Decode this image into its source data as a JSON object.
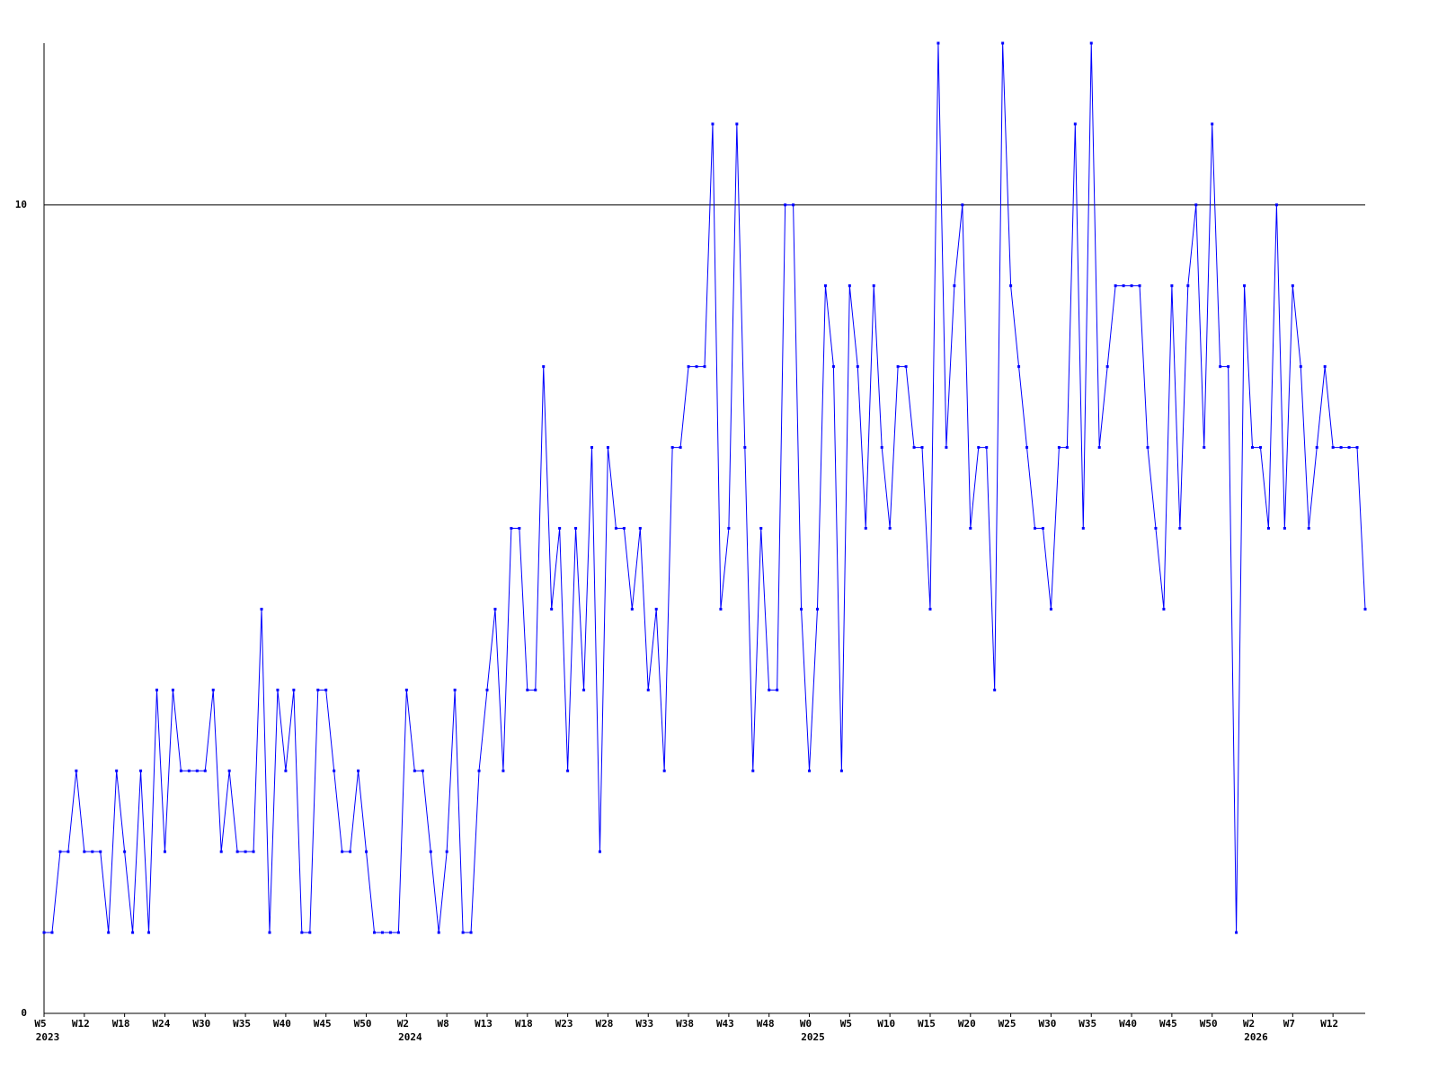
{
  "chart_data": {
    "type": "line",
    "categories": [
      "W5",
      null,
      null,
      null,
      null,
      "W12",
      null,
      null,
      null,
      null,
      "W18",
      null,
      null,
      null,
      null,
      "W24",
      null,
      null,
      null,
      null,
      "W30",
      null,
      null,
      null,
      null,
      "W35",
      null,
      null,
      null,
      null,
      "W40",
      null,
      null,
      null,
      null,
      "W45",
      null,
      null,
      null,
      null,
      "W50",
      null,
      null,
      null,
      null,
      "W2",
      null,
      null,
      null,
      null,
      "W8",
      null,
      null,
      null,
      null,
      "W13",
      null,
      null,
      null,
      null,
      "W18",
      null,
      null,
      null,
      null,
      "W23",
      null,
      null,
      null,
      null,
      "W28",
      null,
      null,
      null,
      null,
      "W33",
      null,
      null,
      null,
      null,
      "W38",
      null,
      null,
      null,
      null,
      "W43",
      null,
      null,
      null,
      null,
      "W48",
      null,
      null,
      null,
      null,
      "W0",
      null,
      null,
      null,
      null,
      "W5",
      null,
      null,
      null,
      null,
      "W10",
      null,
      null,
      null,
      null,
      "W15",
      null,
      null,
      null,
      null,
      "W20",
      null,
      null,
      null,
      null,
      "W25",
      null,
      null,
      null,
      null,
      "W30",
      null,
      null,
      null,
      null,
      "W35",
      null,
      null,
      null,
      null,
      "W40",
      null,
      null,
      null,
      null,
      "W45",
      null,
      null,
      null,
      null,
      "W50",
      null,
      null,
      null,
      null,
      "W2",
      null,
      null,
      null,
      null,
      "W7",
      null,
      null,
      null,
      null,
      "W12",
      null,
      null,
      null,
      null
    ],
    "years": [
      "2023",
      null,
      null,
      null,
      null,
      null,
      null,
      null,
      null,
      null,
      null,
      null,
      null,
      null,
      null,
      null,
      null,
      null,
      null,
      null,
      null,
      null,
      null,
      null,
      null,
      null,
      null,
      null,
      null,
      null,
      null,
      null,
      null,
      null,
      null,
      null,
      null,
      null,
      null,
      null,
      null,
      null,
      null,
      null,
      null,
      "2024",
      null,
      null,
      null,
      null,
      null,
      null,
      null,
      null,
      null,
      null,
      null,
      null,
      null,
      null,
      null,
      null,
      null,
      null,
      null,
      null,
      null,
      null,
      null,
      null,
      null,
      null,
      null,
      null,
      null,
      null,
      null,
      null,
      null,
      null,
      null,
      null,
      null,
      null,
      null,
      null,
      null,
      null,
      null,
      null,
      null,
      null,
      null,
      null,
      null,
      "2025",
      null,
      null,
      null,
      null,
      null,
      null,
      null,
      null,
      null,
      null,
      null,
      null,
      null,
      null,
      null,
      null,
      null,
      null,
      null,
      null,
      null,
      null,
      null,
      null,
      null,
      null,
      null,
      null,
      null,
      null,
      null,
      null,
      null,
      null,
      null,
      null,
      null,
      null,
      null,
      null,
      null,
      null,
      null,
      null,
      null,
      null,
      null,
      null,
      null,
      null,
      null,
      null,
      null,
      null,
      "2026",
      null,
      null,
      null,
      null,
      null,
      null,
      null,
      null,
      null,
      null,
      null,
      null,
      null,
      null
    ],
    "series": [
      {
        "color": "#0000ff",
        "values": [
          1,
          1,
          2,
          2,
          3,
          2,
          2,
          2,
          1,
          3,
          2,
          1,
          3,
          1,
          4,
          2,
          4,
          3,
          3,
          3,
          3,
          4,
          2,
          3,
          2,
          2,
          2,
          5,
          1,
          4,
          3,
          4,
          1,
          1,
          4,
          4,
          3,
          2,
          2,
          3,
          2,
          1,
          1,
          1,
          1,
          4,
          3,
          3,
          2,
          1,
          2,
          4,
          1,
          1,
          3,
          4,
          5,
          3,
          6,
          6,
          4,
          4,
          8,
          5,
          6,
          3,
          6,
          4,
          7,
          2,
          7,
          6,
          6,
          5,
          6,
          4,
          5,
          3,
          7,
          7,
          8,
          8,
          8,
          11,
          5,
          6,
          11,
          7,
          3,
          6,
          4,
          4,
          10,
          10,
          5,
          3,
          5,
          9,
          8,
          3,
          9,
          8,
          6,
          9,
          7,
          6,
          8,
          8,
          7,
          7,
          5,
          12,
          7,
          9,
          10,
          6,
          7,
          7,
          4,
          12,
          9,
          8,
          7,
          6,
          6,
          5,
          7,
          7,
          11,
          6,
          12,
          7,
          8,
          9,
          9,
          9,
          9,
          7,
          6,
          5,
          9,
          6,
          9,
          10,
          7,
          11,
          8,
          8,
          1,
          9,
          7,
          7,
          6,
          10,
          6,
          9,
          8,
          6,
          7,
          8,
          7,
          7,
          7,
          7,
          5
        ]
      }
    ],
    "ylim": [
      0,
      12
    ],
    "yticks": [
      0,
      10
    ],
    "grid": true
  }
}
